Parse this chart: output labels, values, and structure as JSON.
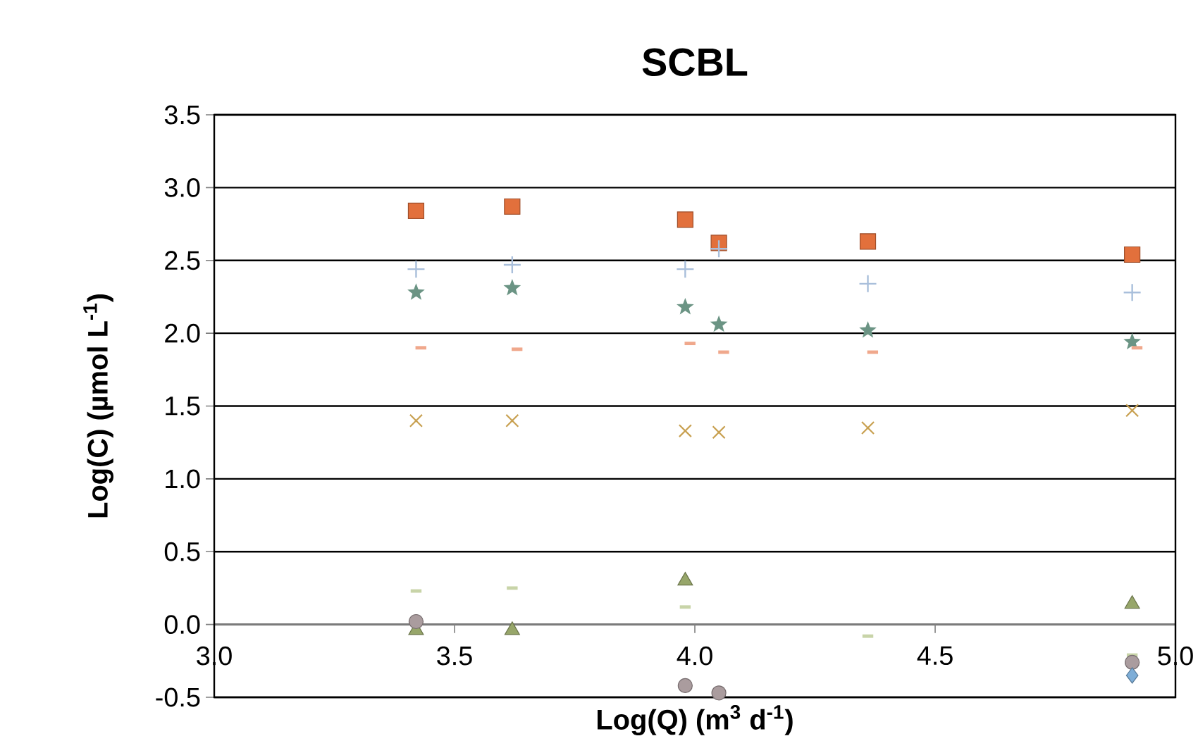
{
  "chart_data": {
    "type": "scatter",
    "title": "SCBL",
    "xlabel": "Log(Q) (m$^{3}$ d$^{-1}$)",
    "ylabel": "Log(C) (µmol L$^{-1}$)",
    "xlim": [
      3.0,
      5.0
    ],
    "ylim": [
      -0.5,
      3.5
    ],
    "xticks": [
      {
        "value": 3.0,
        "label": "3.0"
      },
      {
        "value": 3.5,
        "label": "3.5"
      },
      {
        "value": 4.0,
        "label": "4.0"
      },
      {
        "value": 4.5,
        "label": "4.5"
      },
      {
        "value": 5.0,
        "label": "5.0"
      }
    ],
    "yticks": [
      {
        "value": -0.5,
        "label": "-0.5"
      },
      {
        "value": 0.0,
        "label": "0.0"
      },
      {
        "value": 0.5,
        "label": "0.5"
      },
      {
        "value": 1.0,
        "label": "1.0"
      },
      {
        "value": 1.5,
        "label": "1.5"
      },
      {
        "value": 2.0,
        "label": "2.0"
      },
      {
        "value": 2.5,
        "label": "2.5"
      },
      {
        "value": 3.0,
        "label": "3.0"
      },
      {
        "value": 3.5,
        "label": "3.5"
      }
    ],
    "grid": "y",
    "series": [
      {
        "color": "#e2703c",
        "marker": "square",
        "x": [
          3.42,
          3.62,
          3.98,
          4.05,
          4.36,
          4.91
        ],
        "values": [
          2.84,
          2.87,
          2.78,
          2.62,
          2.63,
          2.54
        ]
      },
      {
        "color": "#a9bfdb",
        "marker": "plus",
        "x": [
          3.42,
          3.62,
          3.98,
          4.05,
          4.36,
          4.91
        ],
        "values": [
          2.44,
          2.47,
          2.44,
          2.58,
          2.34,
          2.28
        ]
      },
      {
        "color": "#6b9484",
        "marker": "star",
        "x": [
          3.42,
          3.62,
          3.98,
          4.05,
          4.36,
          4.91
        ],
        "values": [
          2.28,
          2.31,
          2.18,
          2.06,
          2.02,
          1.94
        ]
      },
      {
        "color": "#f0a88c",
        "x": [
          3.43,
          3.63,
          3.99,
          4.06,
          4.37,
          4.92
        ],
        "values": [
          1.9,
          1.89,
          1.93,
          1.87,
          1.87,
          1.9
        ]
      },
      {
        "color": "#c8a050",
        "marker": "cross",
        "x": [
          3.42,
          3.62,
          3.98,
          4.05,
          4.36,
          4.91
        ],
        "values": [
          1.4,
          1.4,
          1.33,
          1.32,
          1.35,
          1.47
        ]
      },
      {
        "color": "#c8d4a8",
        "x": [
          3.42,
          3.62,
          3.98,
          4.36,
          4.91
        ],
        "values": [
          0.23,
          0.25,
          0.12,
          -0.08,
          -0.21
        ]
      },
      {
        "color": "#97a66a",
        "marker": "triangle",
        "x": [
          3.42,
          3.62,
          3.98,
          4.91
        ],
        "values": [
          -0.04,
          -0.04,
          0.3,
          0.14
        ]
      },
      {
        "color": "#aa9c9e",
        "marker": "circle",
        "x": [
          3.42,
          3.98,
          4.05,
          4.91
        ],
        "values": [
          0.02,
          -0.42,
          -0.47,
          -0.26
        ]
      },
      {
        "color": "#7eaed8",
        "marker": "diamond",
        "x": [
          4.91
        ],
        "values": [
          -0.35
        ]
      }
    ]
  }
}
